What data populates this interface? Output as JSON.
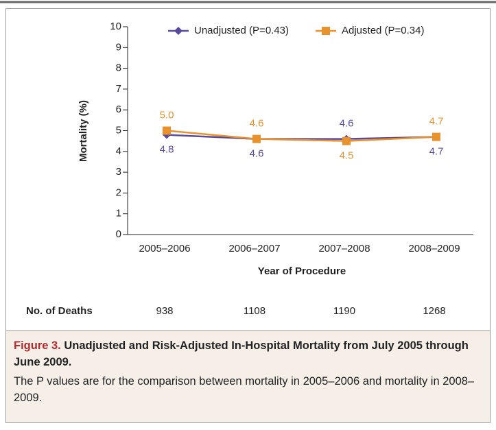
{
  "chart_data": {
    "type": "line",
    "y_label": "Mortality (%)",
    "x_label": "Year of Procedure",
    "categories": [
      "2005–2006",
      "2006–2007",
      "2007–2008",
      "2008–2009"
    ],
    "series": [
      {
        "name": "Unadjusted (P=0.43)",
        "color": "#5a4a9c",
        "marker": "diamond",
        "values": [
          4.8,
          4.6,
          4.6,
          4.7
        ],
        "value_labels": [
          "4.8",
          "4.6",
          "4.6",
          "4.7"
        ]
      },
      {
        "name": "Adjusted (P=0.34)",
        "color": "#e8922e",
        "marker": "square",
        "values": [
          5.0,
          4.6,
          4.5,
          4.7
        ],
        "value_labels": [
          "5.0",
          "4.6",
          "4.5",
          "4.7"
        ]
      }
    ],
    "ylim": [
      0,
      10
    ],
    "yticks": [
      0,
      1,
      2,
      3,
      4,
      5,
      6,
      7,
      8,
      9,
      10
    ],
    "grid": false,
    "deaths_label": "No. of Deaths",
    "deaths": [
      938,
      1108,
      1190,
      1268
    ]
  },
  "caption": {
    "label": "Figure 3.",
    "title": "Unadjusted and Risk-Adjusted In-Hospital Mortality from July 2005 through June 2009.",
    "text": "The P values are for the comparison between mortality in 2005–2006 and mortality in 2008–2009."
  }
}
